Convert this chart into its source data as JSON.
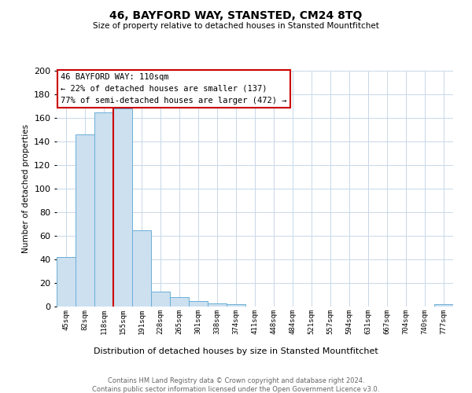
{
  "title": "46, BAYFORD WAY, STANSTED, CM24 8TQ",
  "subtitle": "Size of property relative to detached houses in Stansted Mountfitchet",
  "xlabel": "Distribution of detached houses by size in Stansted Mountfitchet",
  "ylabel": "Number of detached properties",
  "bar_labels": [
    "45sqm",
    "82sqm",
    "118sqm",
    "155sqm",
    "191sqm",
    "228sqm",
    "265sqm",
    "301sqm",
    "338sqm",
    "374sqm",
    "411sqm",
    "448sqm",
    "484sqm",
    "521sqm",
    "557sqm",
    "594sqm",
    "631sqm",
    "667sqm",
    "704sqm",
    "740sqm",
    "777sqm"
  ],
  "bar_values": [
    42,
    146,
    165,
    168,
    65,
    13,
    8,
    5,
    3,
    2,
    0,
    0,
    0,
    0,
    0,
    0,
    0,
    0,
    0,
    0,
    2
  ],
  "bar_color": "#cce0f0",
  "bar_edge_color": "#6baed6",
  "ref_line_color": "#cc0000",
  "ref_line_x": 2.5,
  "ylim": [
    0,
    200
  ],
  "yticks": [
    0,
    20,
    40,
    60,
    80,
    100,
    120,
    140,
    160,
    180,
    200
  ],
  "annotation_title": "46 BAYFORD WAY: 110sqm",
  "annotation_line1": "← 22% of detached houses are smaller (137)",
  "annotation_line2": "77% of semi-detached houses are larger (472) →",
  "annotation_box_color": "#ffffff",
  "annotation_box_edge": "#cc0000",
  "footer_line1": "Contains HM Land Registry data © Crown copyright and database right 2024.",
  "footer_line2": "Contains public sector information licensed under the Open Government Licence v3.0.",
  "background_color": "#ffffff",
  "grid_color": "#c8d8e8"
}
